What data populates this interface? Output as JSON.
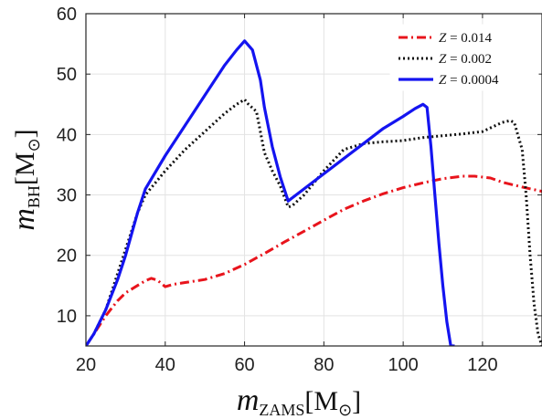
{
  "chart_data": {
    "type": "line",
    "title": "",
    "xlabel": {
      "main": "m",
      "sub": "ZAMS",
      "unit": "[M",
      "unit_sub": "⊙",
      "unit_close": "]"
    },
    "ylabel": {
      "main": "m",
      "sub": "BH",
      "unit": "[M",
      "unit_sub": "⊙",
      "unit_close": "]"
    },
    "xlim": [
      20,
      135
    ],
    "ylim": [
      5,
      60
    ],
    "xticks": [
      20,
      40,
      60,
      80,
      100,
      120
    ],
    "yticks": [
      10,
      20,
      30,
      40,
      50,
      60
    ],
    "xtick_labels": [
      "20",
      "40",
      "60",
      "80",
      "100",
      "120"
    ],
    "ytick_labels": [
      "10",
      "20",
      "30",
      "40",
      "50",
      "60"
    ],
    "grid": true,
    "legend_placement": "top-right",
    "series": [
      {
        "name": "Z = 0.014",
        "name_var": "Z",
        "name_val": " = 0.014",
        "color": "#e8141c",
        "style": "dashdot",
        "x": [
          20,
          22,
          25,
          28,
          30,
          33,
          35,
          36.5,
          38,
          40,
          42,
          45,
          50,
          55,
          60,
          65,
          70,
          75,
          80,
          85,
          90,
          95,
          100,
          105,
          110,
          115,
          118,
          122,
          125,
          130,
          135
        ],
        "y": [
          5,
          7,
          10,
          12.5,
          13.8,
          15,
          15.8,
          16.2,
          15.9,
          14.8,
          15.2,
          15.5,
          16,
          17,
          18.5,
          20.3,
          22.2,
          24,
          25.8,
          27.6,
          29,
          30.2,
          31.2,
          32,
          32.7,
          33.1,
          33.1,
          32.8,
          32.1,
          31.3,
          30.6
        ]
      },
      {
        "name": "Z = 0.002",
        "name_var": "Z",
        "name_val": " = 0.002",
        "color": "#111111",
        "style": "dotted",
        "x": [
          20,
          22,
          25,
          28,
          30,
          33,
          35,
          40,
          45,
          50,
          55,
          58,
          60,
          61,
          63,
          65,
          67,
          69,
          71,
          72,
          75,
          80,
          85,
          90,
          95,
          100,
          105,
          110,
          115,
          120,
          125,
          127,
          128,
          130,
          131,
          132,
          133,
          134,
          135
        ],
        "y": [
          5,
          7,
          11,
          17,
          21,
          27,
          30,
          34,
          37.5,
          40.5,
          43.5,
          45,
          45.8,
          45,
          43.8,
          37,
          34,
          31.5,
          28,
          28.2,
          30,
          34,
          37.5,
          38.5,
          38.8,
          39,
          39.5,
          39.8,
          40.1,
          40.5,
          42,
          42.3,
          42,
          37.5,
          30,
          20,
          12,
          7,
          5
        ]
      },
      {
        "name": "Z = 0.0004",
        "name_var": "Z",
        "name_val": " = 0.0004",
        "color": "#1414f0",
        "style": "solid",
        "x": [
          20,
          22,
          25,
          28,
          30,
          33,
          35,
          40,
          45,
          50,
          55,
          58,
          60,
          62,
          64,
          65,
          67,
          69,
          71,
          72,
          75,
          80,
          85,
          90,
          95,
          100,
          103,
          105,
          106,
          107,
          108,
          109,
          110,
          111,
          112,
          113
        ],
        "y": [
          5,
          7,
          11,
          16,
          20,
          27,
          31,
          36.5,
          41.5,
          46.5,
          51.5,
          54,
          55.5,
          54,
          49,
          44.5,
          38,
          33,
          29,
          29.5,
          31,
          33.5,
          36,
          38.5,
          41,
          43,
          44.3,
          45,
          44.5,
          38,
          30,
          22,
          15,
          9,
          5,
          5
        ]
      }
    ]
  }
}
